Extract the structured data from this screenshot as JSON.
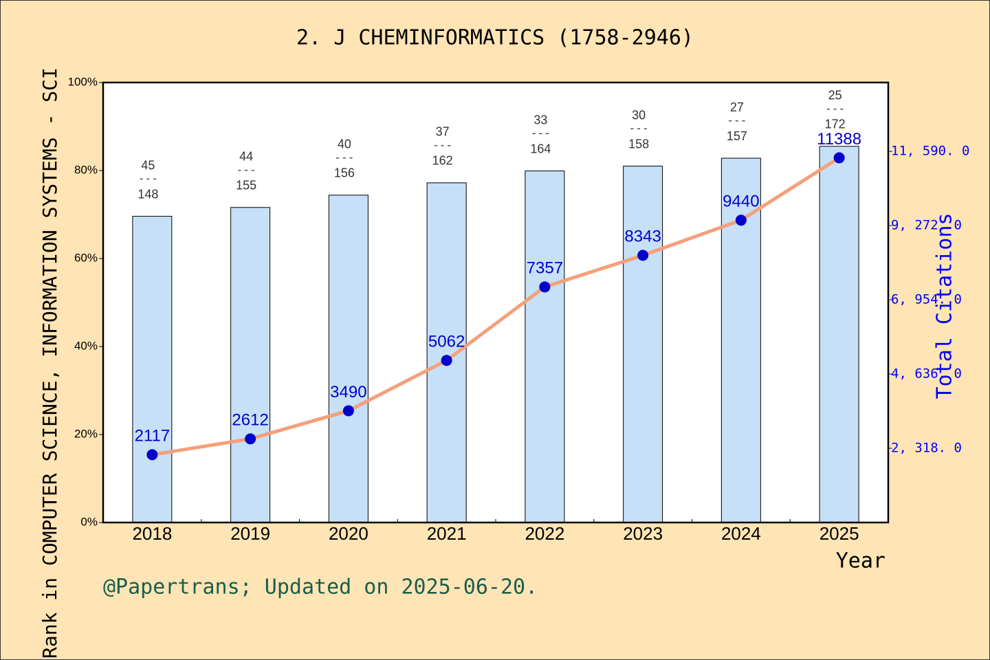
{
  "chart_data": {
    "type": "bar_line",
    "title": "2. J CHEMINFORMATICS (1758-2946)",
    "y_label": "Rank in COMPUTER SCIENCE, INFORMATION SYSTEMS - SCI",
    "y2_label": "Total Citations",
    "x_label": "Year",
    "footer": "@Papertrans; Updated on 2025-06-20.",
    "categories": [
      "2018",
      "2019",
      "2020",
      "2021",
      "2022",
      "2023",
      "2024",
      "2025"
    ],
    "bars": {
      "color": "#c6e0f8",
      "values": [
        69.6,
        71.6,
        74.4,
        77.2,
        79.9,
        81.0,
        82.8,
        85.5
      ],
      "ranks": [
        45,
        44,
        40,
        37,
        33,
        30,
        27,
        25
      ],
      "totals": [
        148,
        155,
        156,
        162,
        164,
        158,
        157,
        172
      ],
      "separator": "---"
    },
    "line": {
      "axis": "y2",
      "color": "#f4a07a",
      "marker_color": "#0000cc",
      "values": [
        2117,
        2612,
        3490,
        5062,
        7357,
        8343,
        9440,
        11388
      ]
    },
    "ylim": [
      0,
      100
    ],
    "yticks": [
      {
        "value": 0,
        "label": "0%"
      },
      {
        "value": 20,
        "label": "20%"
      },
      {
        "value": 40,
        "label": "40%"
      },
      {
        "value": 60,
        "label": "60%"
      },
      {
        "value": 80,
        "label": "80%"
      },
      {
        "value": 100,
        "label": "100%"
      }
    ],
    "y2lim": [
      0,
      13740
    ],
    "y2ticks": [
      {
        "value": 2318,
        "label": "2, 318. 0"
      },
      {
        "value": 4636,
        "label": "4, 636. 0"
      },
      {
        "value": 6954,
        "label": "6, 954. 0"
      },
      {
        "value": 9272,
        "label": "9, 272. 0"
      },
      {
        "value": 11590,
        "label": "11, 590. 0"
      }
    ]
  }
}
